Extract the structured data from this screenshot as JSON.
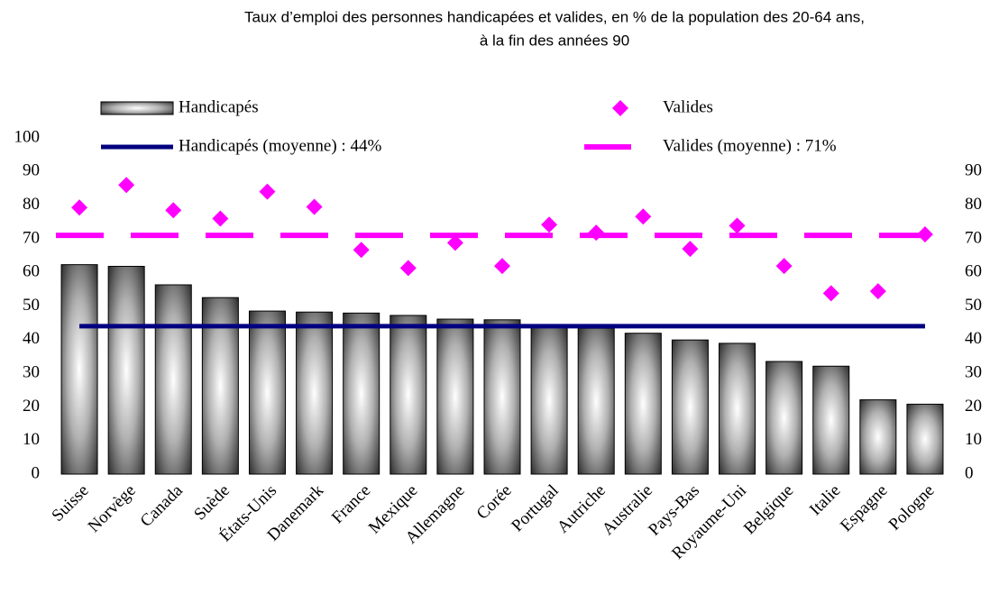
{
  "chart_data": {
    "type": "bar",
    "title": [
      "Taux d’emploi des personnes handicapées et valides, en % de la population des 20-64 ans,",
      "à la fin des années 90"
    ],
    "categories": [
      "Suisse",
      "Norvège",
      "Canada",
      "Suède",
      "États-Unis",
      "Danemark",
      "France",
      "Mexique",
      "Allemagne",
      "Corée",
      "Portugal",
      "Autriche",
      "Australie",
      "Pays-Bas",
      "Royaume-Uni",
      "Belgique",
      "Italie",
      "Espagne",
      "Pologne"
    ],
    "series": [
      {
        "name": "Handicapés",
        "type": "bar",
        "color": "#ffffff",
        "values": [
          62.3,
          61.8,
          56.3,
          52.5,
          48.5,
          48.2,
          47.9,
          47.2,
          46.1,
          45.9,
          43.9,
          43.4,
          41.9,
          39.9,
          38.9,
          33.5,
          32.1,
          22.1,
          20.8
        ]
      },
      {
        "name": "Valides",
        "type": "scatter",
        "color": "#ff00ff",
        "values": [
          79.3,
          86,
          78.5,
          76,
          84,
          79.5,
          66.7,
          61.3,
          68.8,
          61.9,
          74.2,
          71.8,
          76.6,
          67,
          73.9,
          61.9,
          53.8,
          54.4,
          71.3
        ]
      },
      {
        "name": "Handicapés (moyenne) : 44%",
        "type": "hline",
        "color": "#000080",
        "value": 44
      },
      {
        "name": "Valides (moyenne) : 71%",
        "type": "hline-dashed",
        "color": "#ff00ff",
        "value": 71
      }
    ],
    "ylim": [
      0,
      100
    ],
    "yticks": [
      0,
      10,
      20,
      30,
      40,
      50,
      60,
      70,
      80,
      90,
      100
    ],
    "y2lim": [
      0,
      100
    ],
    "y2ticks": [
      0,
      10,
      20,
      30,
      40,
      50,
      60,
      70,
      80,
      90
    ]
  }
}
